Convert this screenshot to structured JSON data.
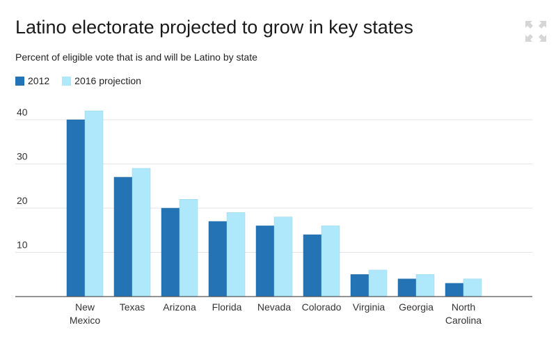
{
  "header": {
    "title": "Latino electorate projected to grow in key states",
    "subtitle": "Percent of eligible vote that is and will be Latino by state"
  },
  "icons": {
    "expand": "expand-arrows-icon"
  },
  "colors": {
    "series_2012": "#2474b5",
    "series_2016": "#aee8fa",
    "gridline": "#e3e3e3",
    "axis": "#555555"
  },
  "chart_data": {
    "type": "bar",
    "title": "Latino electorate projected to grow in key states",
    "subtitle": "Percent of eligible vote that is and will be Latino by state",
    "categories": [
      [
        "New",
        "Mexico"
      ],
      [
        "Texas"
      ],
      [
        "Arizona"
      ],
      [
        "Florida"
      ],
      [
        "Nevada"
      ],
      [
        "Colorado"
      ],
      [
        "Virginia"
      ],
      [
        "Georgia"
      ],
      [
        "North",
        "Carolina"
      ]
    ],
    "series": [
      {
        "name": "2012",
        "color": "#2474b5",
        "values": [
          40,
          27,
          20,
          17,
          16,
          14,
          5,
          4,
          3
        ]
      },
      {
        "name": "2016 projection",
        "color": "#aee8fa",
        "values": [
          42,
          29,
          22,
          19,
          18,
          16,
          6,
          5,
          4
        ]
      }
    ],
    "yticks": [
      10,
      20,
      30,
      40
    ],
    "ylim": [
      0,
      45
    ],
    "xlabel": "",
    "ylabel": "",
    "grid": true,
    "legend": "top-left"
  }
}
